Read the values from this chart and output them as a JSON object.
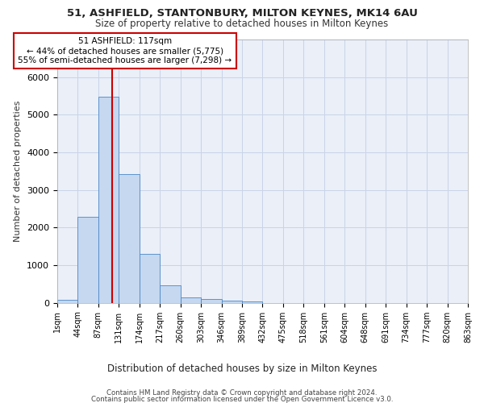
{
  "title_line1": "51, ASHFIELD, STANTONBURY, MILTON KEYNES, MK14 6AU",
  "title_line2": "Size of property relative to detached houses in Milton Keynes",
  "xlabel": "Distribution of detached houses by size in Milton Keynes",
  "ylabel": "Number of detached properties",
  "footer_line1": "Contains HM Land Registry data © Crown copyright and database right 2024.",
  "footer_line2": "Contains public sector information licensed under the Open Government Licence v3.0.",
  "annotation_line1": "51 ASHFIELD: 117sqm",
  "annotation_line2": "← 44% of detached houses are smaller (5,775)",
  "annotation_line3": "55% of semi-detached houses are larger (7,298) →",
  "bin_labels": [
    "1sqm",
    "44sqm",
    "87sqm",
    "131sqm",
    "174sqm",
    "217sqm",
    "260sqm",
    "303sqm",
    "346sqm",
    "389sqm",
    "432sqm",
    "475sqm",
    "518sqm",
    "561sqm",
    "604sqm",
    "648sqm",
    "691sqm",
    "734sqm",
    "777sqm",
    "820sqm",
    "863sqm"
  ],
  "bar_values": [
    80,
    2280,
    5480,
    3430,
    1310,
    460,
    155,
    100,
    65,
    45,
    0,
    0,
    0,
    0,
    0,
    0,
    0,
    0,
    0,
    0
  ],
  "bar_color": "#c5d8f0",
  "bar_edge_color": "#4a86c8",
  "redline_x": 2.67,
  "ylim": [
    0,
    7000
  ],
  "yticks": [
    0,
    1000,
    2000,
    3000,
    4000,
    5000,
    6000,
    7000
  ],
  "grid_color": "#c8d4e8",
  "bg_color": "#eaeff8",
  "annotation_box_color": "#ffffff",
  "annotation_box_edge": "#cc0000",
  "redline_color": "#cc0000"
}
